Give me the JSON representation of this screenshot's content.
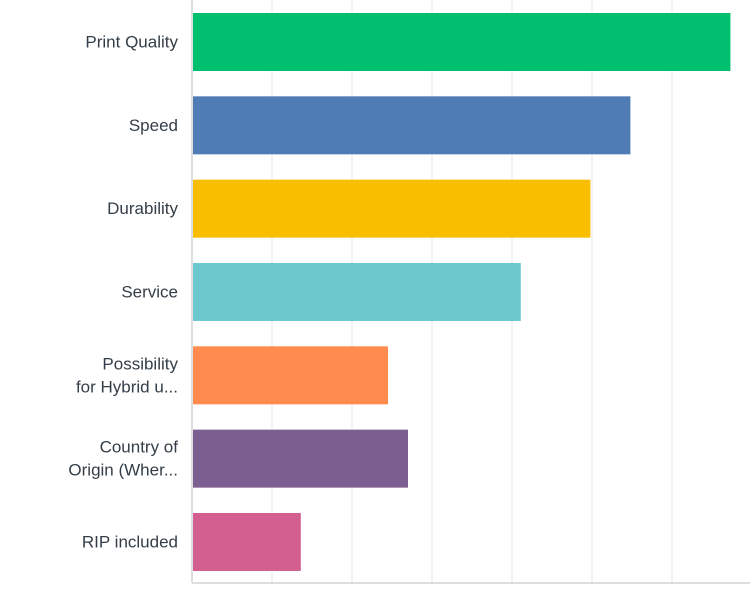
{
  "chart_data": {
    "type": "bar",
    "orientation": "horizontal",
    "title": "",
    "xlabel": "",
    "ylabel": "",
    "categories": [
      [
        "Print Quality"
      ],
      [
        "Speed"
      ],
      [
        "Durability"
      ],
      [
        "Service"
      ],
      [
        "Possibility",
        "for Hybrid u..."
      ],
      [
        "Country of",
        "Origin (Wher..."
      ],
      [
        "RIP included"
      ]
    ],
    "values": [
      6.73,
      5.48,
      4.98,
      4.11,
      2.45,
      2.7,
      1.36
    ],
    "colors": [
      "#00bf6f",
      "#507cb6",
      "#f9be00",
      "#6bc8cd",
      "#ff8b4f",
      "#7d5e90",
      "#d25f90"
    ],
    "xlim": [
      0,
      7
    ],
    "grid": true,
    "tick_labels_shown": false
  }
}
